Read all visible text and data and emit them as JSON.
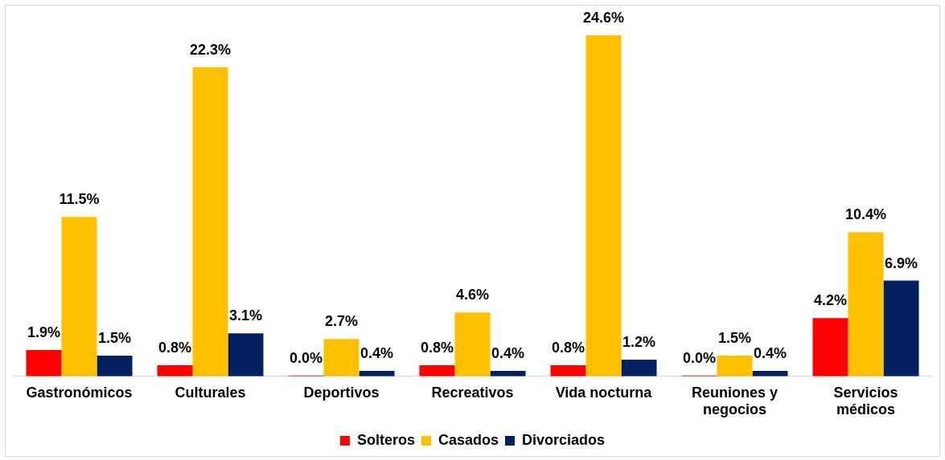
{
  "chart_data": {
    "type": "bar",
    "categories": [
      "Gastronómicos",
      "Culturales",
      "Deportivos",
      "Recreativos",
      "Vida nocturna",
      "Reuniones y negocios",
      "Servicios médicos"
    ],
    "series": [
      {
        "name": "Solteros",
        "color": "#ff0000",
        "values": [
          1.9,
          0.8,
          0.0,
          0.8,
          0.8,
          0.0,
          4.2
        ],
        "value_labels": [
          "1.9%",
          "0.8%",
          "0.0%",
          "0.8%",
          "0.8%",
          "0.0%",
          "4.2%"
        ]
      },
      {
        "name": "Casados",
        "color": "#ffc000",
        "values": [
          11.5,
          22.3,
          2.7,
          4.6,
          24.6,
          1.5,
          10.4
        ],
        "value_labels": [
          "11.5%",
          "22.3%",
          "2.7%",
          "4.6%",
          "24.6%",
          "1.5%",
          "10.4%"
        ]
      },
      {
        "name": "Divorciados",
        "color": "#002060",
        "values": [
          1.5,
          3.1,
          0.4,
          0.4,
          1.2,
          0.4,
          6.9
        ],
        "value_labels": [
          "1.5%",
          "3.1%",
          "0.4%",
          "0.4%",
          "1.2%",
          "0.4%",
          "6.9%"
        ]
      }
    ],
    "legend": "bottom",
    "grid": false
  }
}
